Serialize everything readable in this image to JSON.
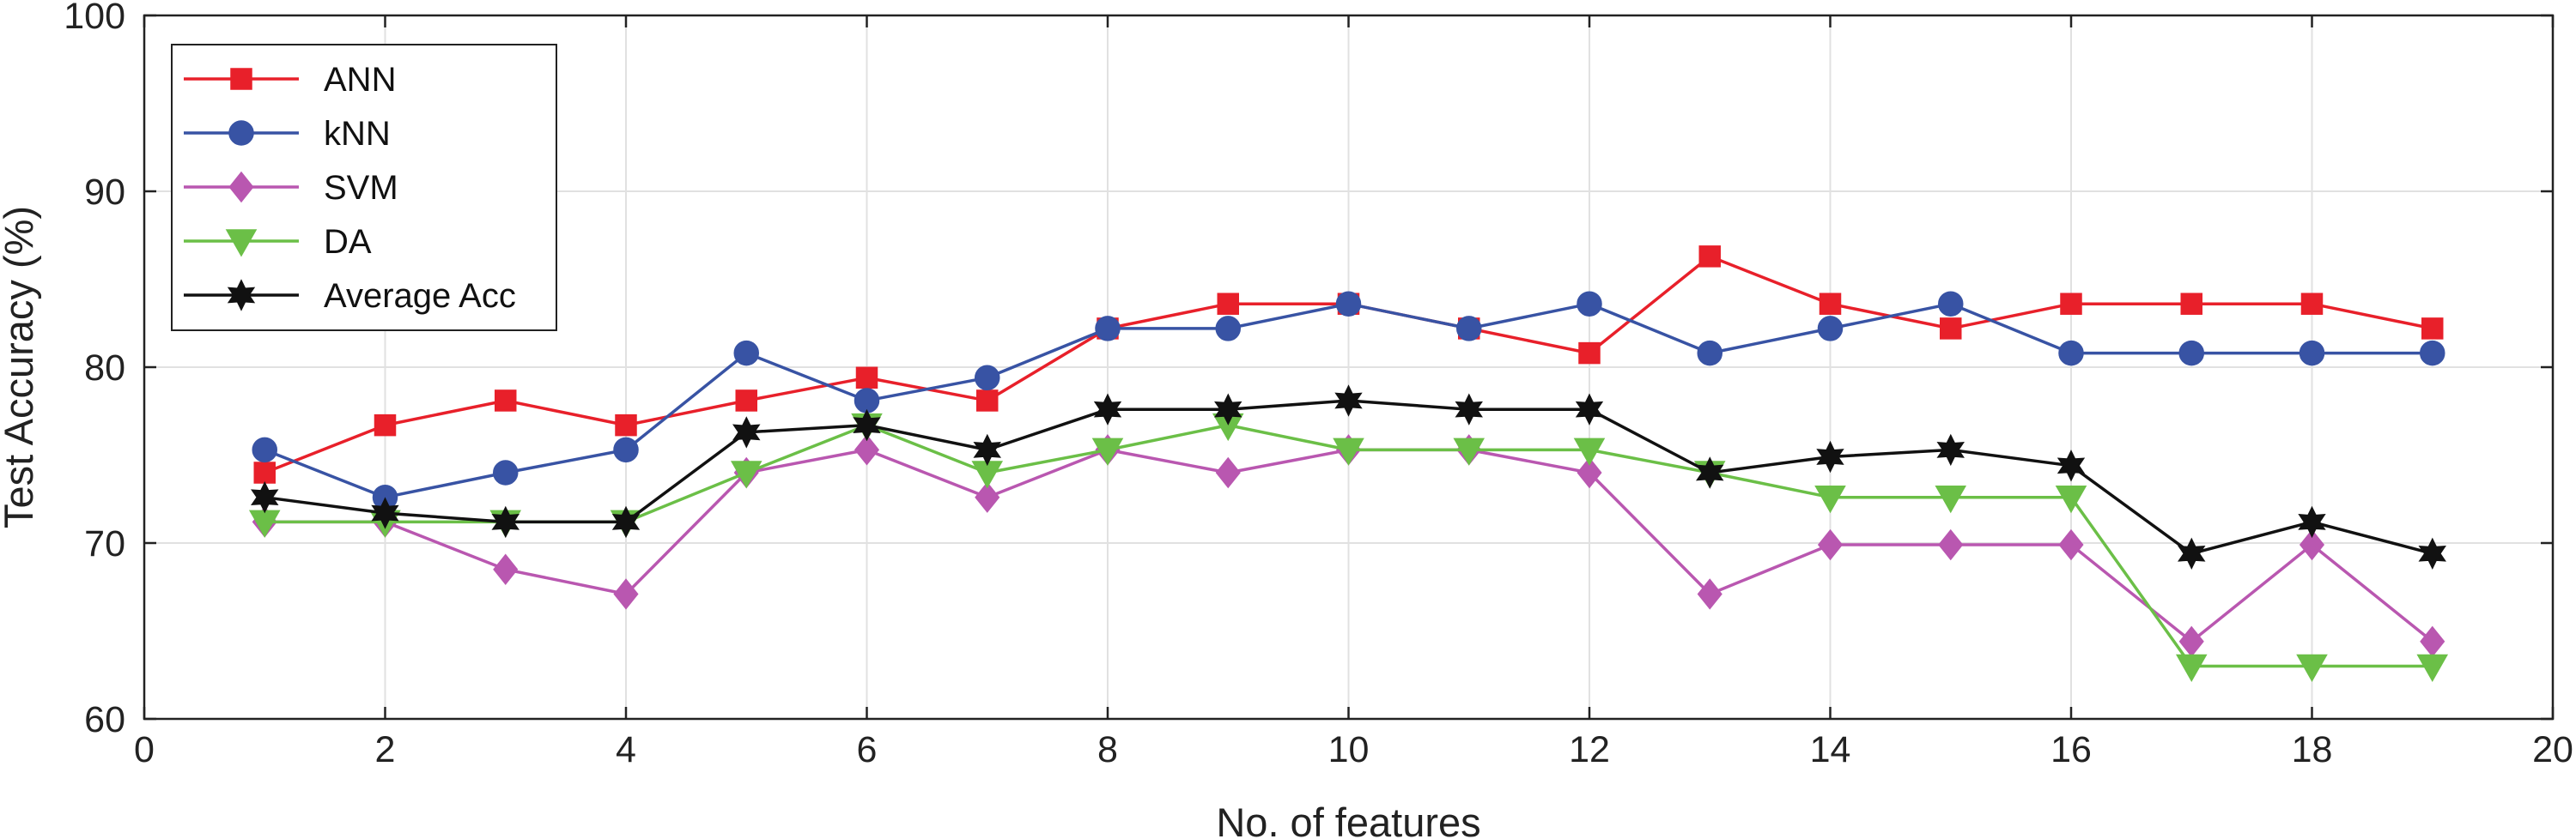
{
  "chart_data": {
    "type": "line",
    "xlabel": "No. of features",
    "ylabel": "Test Accuracy (%)",
    "xlim": [
      0,
      20
    ],
    "ylim": [
      60,
      100
    ],
    "xticks": [
      0,
      2,
      4,
      6,
      8,
      10,
      12,
      14,
      16,
      18,
      20
    ],
    "yticks": [
      60,
      70,
      80,
      90,
      100
    ],
    "grid": true,
    "legend_position": "top-left",
    "x": [
      1,
      2,
      3,
      4,
      5,
      6,
      7,
      8,
      9,
      10,
      11,
      12,
      13,
      14,
      15,
      16,
      17,
      18,
      19
    ],
    "series": [
      {
        "name": "ANN",
        "color": "#e8202a",
        "marker": "square",
        "values": [
          74.0,
          76.7,
          78.1,
          76.7,
          78.1,
          79.4,
          78.1,
          82.2,
          83.6,
          83.6,
          82.2,
          80.8,
          86.3,
          83.6,
          82.2,
          83.6,
          83.6,
          83.6,
          82.2
        ]
      },
      {
        "name": "kNN",
        "color": "#3853a4",
        "marker": "circle",
        "values": [
          75.3,
          72.6,
          74.0,
          75.3,
          80.8,
          78.1,
          79.4,
          82.2,
          82.2,
          83.6,
          82.2,
          83.6,
          80.8,
          82.2,
          83.6,
          80.8,
          80.8,
          80.8,
          80.8
        ]
      },
      {
        "name": "SVM",
        "color": "#b957b0",
        "marker": "diamond",
        "values": [
          71.2,
          71.2,
          68.5,
          67.1,
          74.0,
          75.3,
          72.6,
          75.3,
          74.0,
          75.3,
          75.3,
          74.0,
          67.1,
          69.9,
          69.9,
          69.9,
          64.4,
          69.9,
          64.4
        ]
      },
      {
        "name": "DA",
        "color": "#6bbf47",
        "marker": "triangle-down",
        "values": [
          71.2,
          71.2,
          71.2,
          71.2,
          74.0,
          76.7,
          74.0,
          75.3,
          76.7,
          75.3,
          75.3,
          75.3,
          74.0,
          72.6,
          72.6,
          72.6,
          63.0,
          63.0,
          63.0
        ]
      },
      {
        "name": "Average Acc",
        "color": "#111111",
        "marker": "hexagram",
        "values": [
          72.6,
          71.7,
          71.2,
          71.2,
          76.3,
          76.7,
          75.3,
          77.6,
          77.6,
          78.1,
          77.6,
          77.6,
          74.0,
          74.9,
          75.3,
          74.4,
          69.4,
          71.2,
          69.4
        ]
      }
    ]
  }
}
